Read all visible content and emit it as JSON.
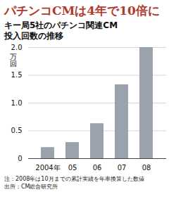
{
  "chart_data": {
    "type": "bar",
    "title": "パチンコCMは4年で10倍に",
    "subtitle": [
      "キー局5社のパチンコ関連CM",
      "投入回数の推移"
    ],
    "y_label": "万回",
    "categories": [
      "2004年",
      "05",
      "06",
      "07",
      "08"
    ],
    "values": [
      0.2,
      0.29,
      0.63,
      1.33,
      2.0
    ],
    "color": "#9aa3ad",
    "ylim": [
      0,
      2
    ],
    "yticks": [
      0,
      0.5,
      {
        "value": 1,
        "label": "1.0"
      },
      1.5,
      {
        "value": 2,
        "label": "2.0"
      }
    ],
    "grid": true,
    "notes": [
      "注：2008年は10月までの累計実績を年率換算した数値",
      "出所：CM総合研究所"
    ]
  }
}
